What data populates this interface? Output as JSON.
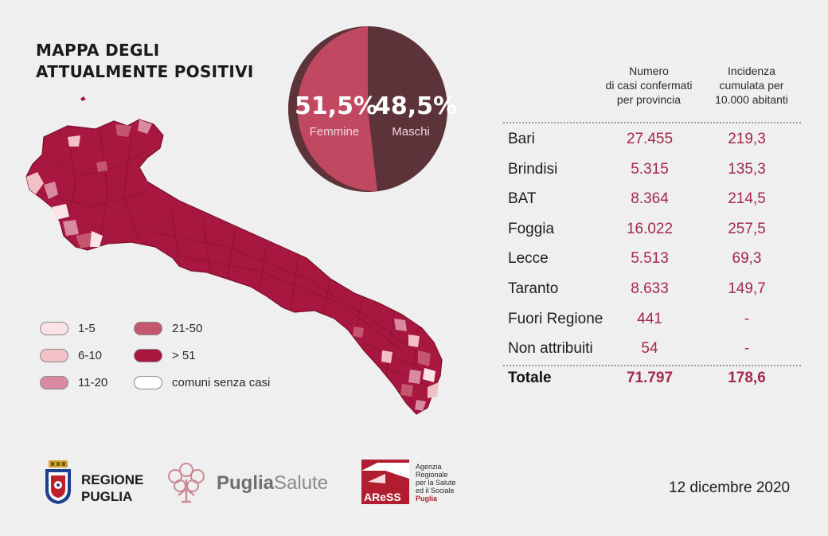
{
  "title": [
    "MAPPA DEGLI",
    "ATTUALMENTE POSITIVI"
  ],
  "pie": {
    "slices": [
      {
        "pct": "51,5%",
        "label": "Femmine",
        "value": 51.5,
        "color": "#c04860"
      },
      {
        "pct": "48,5%",
        "label": "Maschi",
        "value": 48.5,
        "color": "#5c3338"
      }
    ]
  },
  "legend": [
    {
      "label": "1-5",
      "color": "#fbe3e5"
    },
    {
      "label": "6-10",
      "color": "#f3c0c7"
    },
    {
      "label": "11-20",
      "color": "#d98aa0"
    },
    {
      "label": "21-50",
      "color": "#c45670"
    },
    {
      "label": "> 51",
      "color": "#a8173f"
    },
    {
      "label": "comuni senza casi",
      "color": "#ffffff"
    }
  ],
  "table": {
    "headers": [
      [
        "Numero",
        "di casi confermati",
        "per provincia"
      ],
      [
        "Incidenza",
        "cumulata per",
        "10.000 abitanti"
      ]
    ],
    "rows": [
      {
        "name": "Bari",
        "cases": "27.455",
        "incidence": "219,3"
      },
      {
        "name": "Brindisi",
        "cases": "5.315",
        "incidence": "135,3"
      },
      {
        "name": "BAT",
        "cases": "8.364",
        "incidence": "214,5"
      },
      {
        "name": "Foggia",
        "cases": "16.022",
        "incidence": "257,5"
      },
      {
        "name": "Lecce",
        "cases": "5.513",
        "incidence": "69,3"
      },
      {
        "name": "Taranto",
        "cases": "8.633",
        "incidence": "149,7"
      },
      {
        "name": "Fuori Regione",
        "cases": "441",
        "incidence": "-"
      },
      {
        "name": "Non attribuiti",
        "cases": "54",
        "incidence": "-"
      }
    ],
    "total": {
      "name": "Totale",
      "cases": "71.797",
      "incidence": "178,6"
    }
  },
  "footer": {
    "regione": [
      "REGIONE",
      "PUGLIA"
    ],
    "puglia_salute": {
      "bold": "Puglia",
      "light": "Salute"
    },
    "ares": [
      "Agenzia",
      "Regionale",
      "per la Salute",
      "ed il Sociale",
      "Puglia"
    ],
    "ares_logo_text": "AReSS",
    "date": "12 dicembre 2020"
  },
  "colors": {
    "accent": "#a3284a",
    "map_fill": "#a8173f"
  }
}
